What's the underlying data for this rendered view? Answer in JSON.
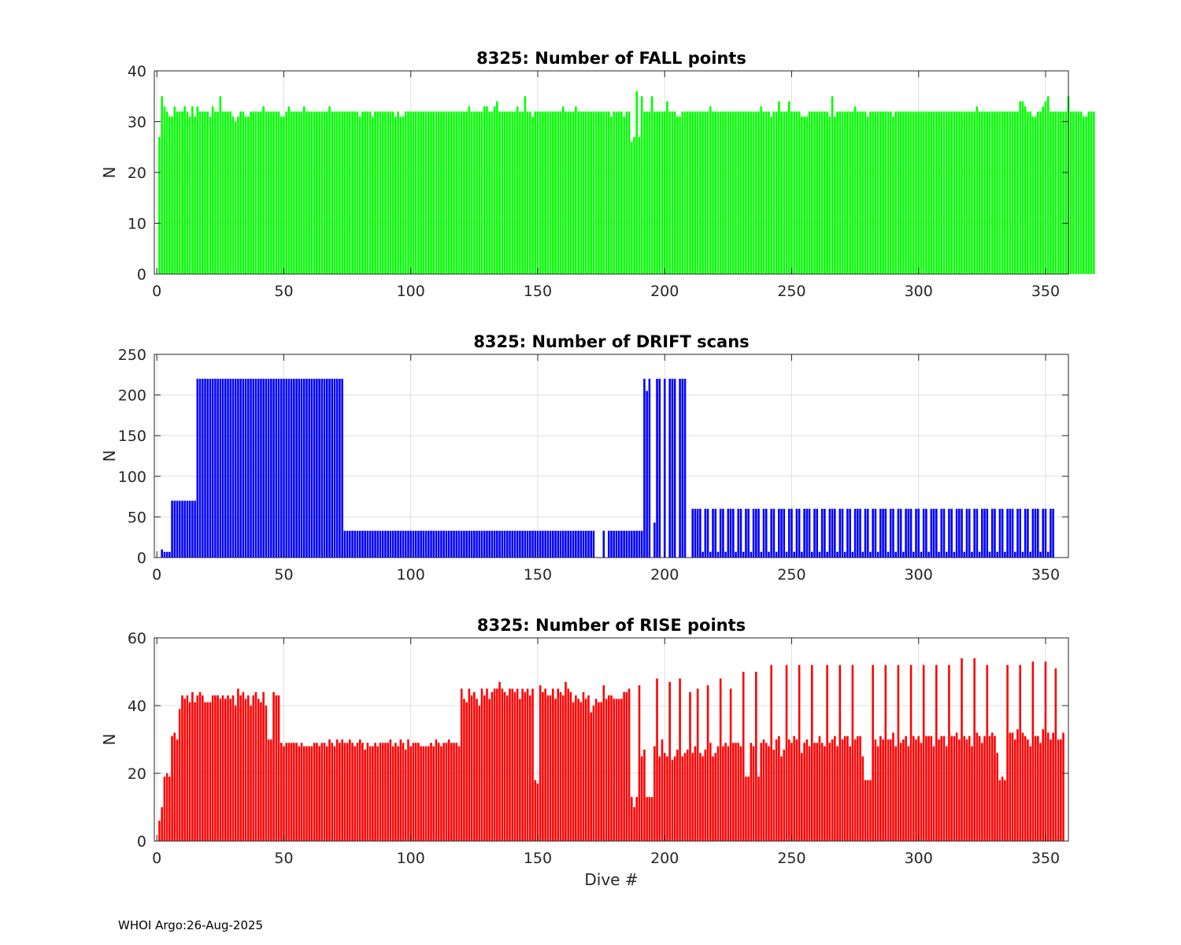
{
  "figure": {
    "footer": "WHOI Argo:26-Aug-2025"
  },
  "chart_data": [
    {
      "type": "bar",
      "title": "8325: Number of FALL points",
      "xlabel": "",
      "ylabel": "N",
      "xlim": [
        -1,
        359
      ],
      "ylim": [
        0,
        40
      ],
      "xticks": [
        0,
        50,
        100,
        150,
        200,
        250,
        300,
        350
      ],
      "yticks": [
        0,
        10,
        20,
        30,
        40
      ],
      "grid": true,
      "color": "#00ff00",
      "x_start": 1,
      "values": [
        27,
        35,
        33,
        32,
        31,
        31,
        33,
        32,
        32,
        32,
        33,
        32,
        31,
        33,
        31,
        33,
        32,
        32,
        32,
        32,
        31,
        33,
        32,
        32,
        35,
        32,
        32,
        32,
        32,
        31,
        30,
        31,
        32,
        32,
        31,
        31,
        32,
        32,
        32,
        32,
        32,
        33,
        32,
        32,
        32,
        32,
        32,
        32,
        31,
        31,
        32,
        33,
        32,
        32,
        32,
        32,
        32,
        33,
        32,
        32,
        32,
        32,
        32,
        32,
        32,
        32,
        32,
        33,
        32,
        32,
        32,
        32,
        32,
        32,
        32,
        32,
        32,
        32,
        32,
        31,
        32,
        32,
        32,
        32,
        31,
        32,
        32,
        32,
        32,
        32,
        32,
        32,
        32,
        31,
        32,
        31,
        31,
        32,
        32,
        32,
        32,
        32,
        32,
        32,
        32,
        32,
        32,
        32,
        32,
        32,
        32,
        32,
        32,
        32,
        32,
        32,
        32,
        32,
        32,
        32,
        32,
        32,
        33,
        32,
        32,
        32,
        32,
        32,
        33,
        33,
        32,
        32,
        33,
        34,
        32,
        32,
        32,
        32,
        32,
        32,
        32,
        33,
        32,
        32,
        35,
        32,
        32,
        31,
        32,
        32,
        32,
        32,
        32,
        32,
        32,
        32,
        32,
        32,
        32,
        33,
        32,
        32,
        32,
        32,
        33,
        32,
        32,
        32,
        32,
        32,
        32,
        32,
        32,
        32,
        32,
        32,
        32,
        32,
        31,
        32,
        32,
        32,
        32,
        31,
        32,
        32,
        26,
        27,
        36,
        27,
        35,
        32,
        32,
        32,
        35,
        32,
        32,
        32,
        32,
        32,
        34,
        32,
        32,
        32,
        31,
        31,
        32,
        32,
        32,
        32,
        32,
        32,
        32,
        32,
        32,
        32,
        32,
        33,
        32,
        32,
        32,
        32,
        32,
        32,
        32,
        32,
        32,
        32,
        32,
        32,
        32,
        32,
        32,
        32,
        32,
        32,
        32,
        33,
        32,
        32,
        32,
        31,
        32,
        32,
        34,
        32,
        32,
        32,
        34,
        32,
        32,
        32,
        32,
        31,
        31,
        31,
        32,
        32,
        32,
        32,
        32,
        32,
        32,
        32,
        31,
        35,
        31,
        32,
        32,
        32,
        32,
        32,
        32,
        32,
        33,
        32,
        32,
        32,
        32,
        31,
        32,
        32,
        32,
        32,
        32,
        32,
        32,
        32,
        32,
        31,
        32,
        32,
        32,
        32,
        32,
        32,
        32,
        32,
        32,
        32,
        32,
        32,
        32,
        32,
        32,
        32,
        32,
        32,
        32,
        32,
        32,
        32,
        32,
        32,
        32,
        32,
        32,
        32,
        32,
        32,
        32,
        32,
        33,
        32,
        32,
        32,
        32,
        32,
        32,
        32,
        32,
        32,
        32,
        32,
        32,
        32,
        32,
        32,
        32,
        34,
        34,
        33,
        32,
        32,
        31,
        31,
        32,
        32,
        33,
        34,
        35,
        32,
        32,
        32,
        32,
        32,
        32,
        32,
        35,
        32,
        32,
        32,
        32,
        32,
        31,
        31,
        32,
        32,
        32
      ]
    },
    {
      "type": "bar",
      "title": "8325: Number of DRIFT scans",
      "xlabel": "",
      "ylabel": "N",
      "xlim": [
        -1,
        359
      ],
      "ylim": [
        0,
        250
      ],
      "xticks": [
        0,
        50,
        100,
        150,
        200,
        250,
        300,
        350
      ],
      "yticks": [
        0,
        50,
        100,
        150,
        200,
        250
      ],
      "grid": true,
      "color": "#0000ff",
      "x_start": 1,
      "values": [
        0,
        10,
        7,
        7,
        7,
        70,
        70,
        70,
        70,
        70,
        70,
        70,
        70,
        70,
        70,
        220,
        220,
        220,
        220,
        220,
        220,
        220,
        220,
        220,
        220,
        220,
        220,
        220,
        220,
        220,
        220,
        220,
        220,
        220,
        220,
        220,
        220,
        220,
        220,
        220,
        220,
        220,
        220,
        220,
        220,
        220,
        220,
        220,
        220,
        220,
        220,
        220,
        220,
        220,
        220,
        220,
        220,
        220,
        220,
        220,
        220,
        220,
        220,
        220,
        220,
        220,
        220,
        220,
        220,
        220,
        220,
        220,
        220,
        33,
        33,
        33,
        33,
        33,
        33,
        33,
        33,
        33,
        33,
        33,
        33,
        33,
        33,
        33,
        33,
        33,
        33,
        33,
        33,
        33,
        33,
        33,
        33,
        33,
        33,
        33,
        33,
        33,
        33,
        33,
        33,
        33,
        33,
        33,
        33,
        33,
        33,
        33,
        33,
        33,
        33,
        33,
        33,
        33,
        33,
        33,
        33,
        33,
        33,
        33,
        33,
        33,
        33,
        33,
        33,
        33,
        33,
        33,
        33,
        33,
        33,
        33,
        33,
        33,
        33,
        33,
        33,
        33,
        33,
        33,
        33,
        33,
        33,
        33,
        33,
        33,
        33,
        33,
        33,
        33,
        33,
        33,
        33,
        33,
        33,
        33,
        33,
        33,
        33,
        33,
        33,
        33,
        33,
        33,
        33,
        33,
        33,
        33,
        0,
        0,
        0,
        33,
        0,
        33,
        33,
        33,
        33,
        33,
        33,
        33,
        33,
        33,
        33,
        33,
        33,
        33,
        33,
        220,
        205,
        220,
        0,
        43,
        220,
        220,
        0,
        220,
        0,
        220,
        220,
        220,
        0,
        220,
        220,
        220,
        0,
        0,
        60,
        60,
        60,
        60,
        7,
        60,
        60,
        7,
        60,
        60,
        7,
        60,
        60,
        7,
        60,
        60,
        60,
        7,
        60,
        60,
        7,
        60,
        60,
        7,
        60,
        60,
        60,
        7,
        60,
        60,
        7,
        60,
        60,
        7,
        60,
        60,
        60,
        7,
        60,
        60,
        7,
        60,
        60,
        7,
        60,
        60,
        60,
        7,
        60,
        60,
        7,
        60,
        60,
        7,
        60,
        60,
        60,
        7,
        60,
        60,
        7,
        60,
        60,
        7,
        60,
        60,
        60,
        7,
        60,
        60,
        7,
        60,
        60,
        7,
        60,
        60,
        60,
        7,
        60,
        60,
        7,
        60,
        60,
        7,
        60,
        60,
        60,
        7,
        60,
        60,
        7,
        60,
        60,
        7,
        60,
        60,
        60,
        7,
        60,
        60,
        7,
        60,
        60,
        7,
        60,
        60,
        60,
        7,
        60,
        60,
        7,
        60,
        60,
        7,
        60,
        60,
        60,
        7,
        60,
        60,
        7,
        60,
        60,
        7,
        60,
        60,
        60,
        7,
        60,
        60,
        7,
        60,
        60,
        7,
        60,
        60,
        60,
        7,
        60,
        60,
        7,
        60,
        60
      ]
    },
    {
      "type": "bar",
      "title": "8325: Number of RISE points",
      "xlabel": "Dive #",
      "ylabel": "N",
      "xlim": [
        -1,
        359
      ],
      "ylim": [
        0,
        60
      ],
      "xticks": [
        0,
        50,
        100,
        150,
        200,
        250,
        300,
        350
      ],
      "yticks": [
        0,
        20,
        40,
        60
      ],
      "grid": true,
      "color": "#ff0000",
      "x_start": 1,
      "values": [
        6,
        10,
        19,
        20,
        19,
        31,
        32,
        30,
        39,
        43,
        42,
        43,
        41,
        44,
        41,
        43,
        44,
        43,
        41,
        41,
        41,
        43,
        43,
        43,
        42,
        43,
        42,
        43,
        42,
        43,
        40,
        45,
        43,
        44,
        42,
        43,
        40,
        43,
        44,
        42,
        41,
        44,
        40,
        30,
        30,
        44,
        43,
        43,
        29,
        28,
        29,
        29,
        29,
        29,
        29,
        28,
        29,
        28,
        28,
        28,
        28,
        29,
        29,
        28,
        29,
        29,
        28,
        30,
        29,
        28,
        30,
        29,
        30,
        29,
        29,
        30,
        29,
        28,
        29,
        30,
        29,
        27,
        29,
        28,
        28,
        29,
        28,
        29,
        29,
        29,
        29,
        30,
        28,
        29,
        28,
        30,
        29,
        27,
        30,
        28,
        29,
        29,
        29,
        28,
        28,
        28,
        28,
        29,
        28,
        30,
        29,
        28,
        29,
        29,
        30,
        29,
        29,
        29,
        28,
        45,
        42,
        41,
        45,
        43,
        44,
        42,
        40,
        45,
        43,
        45,
        42,
        44,
        45,
        45,
        47,
        45,
        44,
        43,
        45,
        45,
        44,
        45,
        42,
        45,
        44,
        45,
        43,
        45,
        18,
        17,
        46,
        44,
        45,
        43,
        43,
        45,
        42,
        45,
        44,
        43,
        47,
        45,
        44,
        41,
        43,
        42,
        41,
        44,
        42,
        43,
        38,
        40,
        42,
        41,
        41,
        46,
        42,
        43,
        43,
        42,
        42,
        42,
        42,
        44,
        44,
        45,
        13,
        10,
        13,
        46,
        25,
        27,
        13,
        13,
        13,
        28,
        48,
        25,
        30,
        26,
        25,
        47,
        24,
        25,
        27,
        48,
        25,
        26,
        27,
        44,
        26,
        28,
        45,
        26,
        25,
        27,
        46,
        29,
        25,
        26,
        28,
        48,
        28,
        29,
        28,
        45,
        29,
        29,
        29,
        28,
        50,
        19,
        19,
        29,
        28,
        50,
        19,
        29,
        30,
        29,
        28,
        52,
        27,
        30,
        31,
        25,
        27,
        52,
        30,
        29,
        31,
        30,
        52,
        26,
        29,
        30,
        28,
        52,
        29,
        29,
        31,
        29,
        28,
        52,
        29,
        30,
        31,
        28,
        52,
        30,
        31,
        31,
        28,
        52,
        30,
        31,
        31,
        25,
        18,
        18,
        18,
        52,
        30,
        28,
        31,
        30,
        52,
        30,
        30,
        32,
        28,
        52,
        29,
        30,
        31,
        28,
        52,
        31,
        30,
        31,
        29,
        52,
        31,
        31,
        31,
        28,
        52,
        30,
        31,
        31,
        28,
        52,
        31,
        31,
        32,
        30,
        54,
        31,
        30,
        31,
        28,
        54,
        32,
        31,
        29,
        31,
        52,
        31,
        32,
        31,
        26,
        18,
        19,
        18,
        52,
        32,
        32,
        30,
        33,
        52,
        32,
        31,
        30,
        28,
        53,
        31,
        31,
        29,
        33,
        53,
        32,
        30,
        32,
        51,
        30,
        30,
        32
      ]
    }
  ]
}
